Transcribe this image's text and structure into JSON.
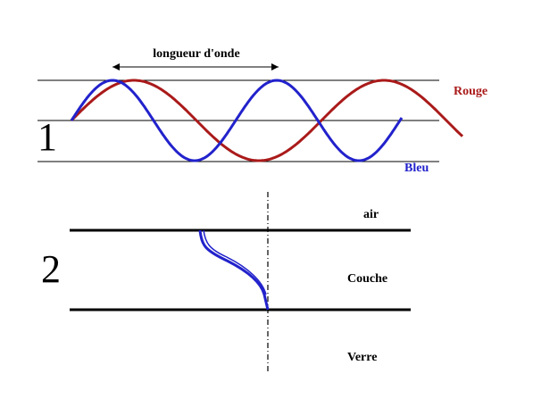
{
  "panel1": {
    "number": "1",
    "wavelength_label": "longueur d'onde",
    "red_label": "Rouge",
    "blue_label": "Bleu"
  },
  "panel2": {
    "number": "2",
    "top_label": "air",
    "middle_label": "Couche",
    "bottom_label": "Verre"
  }
}
